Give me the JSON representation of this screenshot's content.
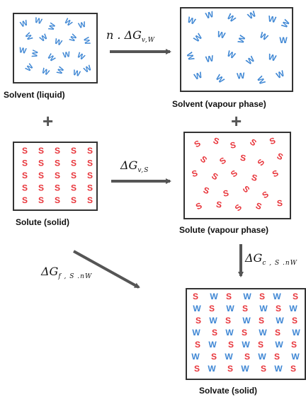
{
  "boxes": {
    "solvent_liquid": {
      "label": "Solvent (liquid)",
      "letter": "W"
    },
    "solvent_vapour": {
      "label": "Solvent (vapour phase)",
      "letter": "W"
    },
    "solute_solid": {
      "label": "Solute (solid)",
      "letter": "S"
    },
    "solute_vapour": {
      "label": "Solute (vapour phase)",
      "letter": "S"
    },
    "solvate_solid": {
      "label": "Solvate (solid)"
    }
  },
  "plus_sign": "+",
  "equations": {
    "n_dg_vw": {
      "prefix": "n . ΔG",
      "sub": "v,W"
    },
    "dg_vs": {
      "prefix": "ΔG",
      "sub": "v,S"
    },
    "dg_fsnw": {
      "prefix": "ΔG",
      "sub": "f , S .nW"
    },
    "dg_csnw": {
      "prefix": "ΔG",
      "sub": "c , S .nW"
    }
  },
  "solvate_rows": [
    [
      "S",
      "W",
      "S",
      "W",
      "S",
      "W",
      "S"
    ],
    [
      "W",
      "S",
      "W",
      "S",
      "W",
      "S",
      "W"
    ],
    [
      "S",
      "W",
      "S",
      "W",
      "S",
      "W",
      "S"
    ],
    [
      "W",
      "S",
      "W",
      "S",
      "W",
      "S",
      "W"
    ],
    [
      "S",
      "W",
      "S",
      "W",
      "S",
      "W",
      "S"
    ],
    [
      "W",
      "S",
      "W",
      "S",
      "W",
      "S",
      "W"
    ],
    [
      "S",
      "W",
      "S",
      "W",
      "S",
      "W",
      "S"
    ]
  ],
  "colors": {
    "W": "#3f87d4",
    "S": "#e8343a",
    "arrow": "#555555"
  }
}
